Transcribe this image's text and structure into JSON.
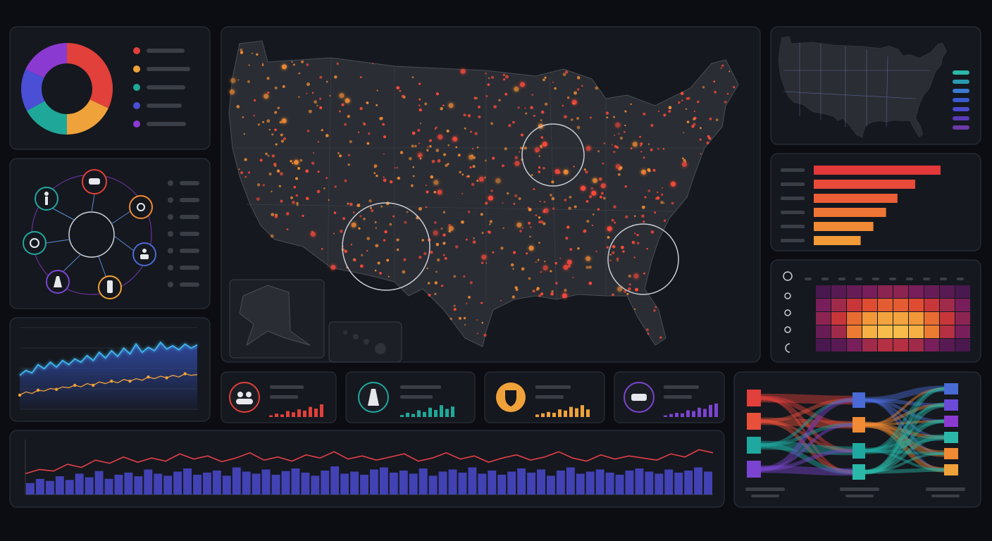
{
  "donut": {
    "values": [
      32,
      18,
      17,
      15,
      18
    ],
    "colors": [
      "#e2403a",
      "#f0a23a",
      "#1fa89a",
      "#4a4fd6",
      "#8a3ad0"
    ]
  },
  "ranking": {
    "values": [
      100,
      80,
      66,
      57,
      47,
      37
    ],
    "colors": [
      "#e2383a",
      "#e84a3a",
      "#ec5f36",
      "#ef7534",
      "#f08a34",
      "#f09a38"
    ]
  },
  "heatmap": {
    "values": [
      [
        10,
        15,
        20,
        25,
        30,
        30,
        25,
        20,
        15,
        10
      ],
      [
        25,
        35,
        45,
        55,
        60,
        60,
        55,
        45,
        35,
        25
      ],
      [
        30,
        45,
        65,
        80,
        85,
        85,
        80,
        65,
        45,
        30
      ],
      [
        20,
        35,
        70,
        90,
        95,
        95,
        90,
        70,
        40,
        25
      ],
      [
        10,
        15,
        25,
        35,
        40,
        40,
        35,
        25,
        15,
        10
      ]
    ]
  },
  "trend": {
    "ylim": [
      0,
      100
    ],
    "series": [
      {
        "color": "#3fb6f0",
        "values": [
          42,
          48,
          45,
          55,
          50,
          58,
          52,
          60,
          55,
          62,
          58,
          66,
          60,
          70,
          63,
          72,
          65,
          75,
          68,
          80,
          70,
          76,
          72,
          82,
          74,
          78,
          73,
          80,
          75,
          79
        ]
      },
      {
        "color": "#f0a23a",
        "values": [
          18,
          22,
          20,
          24,
          23,
          26,
          25,
          28,
          27,
          30,
          28,
          32,
          30,
          34,
          32,
          35,
          33,
          37,
          35,
          38,
          36,
          40,
          38,
          41,
          39,
          42,
          40,
          44,
          42,
          43
        ]
      }
    ]
  },
  "kpis": [
    {
      "color": "#e2403a",
      "values": [
        10,
        20,
        15,
        35,
        28,
        45,
        38,
        60,
        50,
        75
      ]
    },
    {
      "color": "#1fa89a",
      "values": [
        12,
        25,
        18,
        40,
        30,
        55,
        42,
        70,
        48,
        62
      ]
    },
    {
      "color": "#f0a23a",
      "values": [
        15,
        22,
        30,
        25,
        45,
        38,
        60,
        52,
        70,
        45
      ]
    },
    {
      "color": "#7a44d0",
      "values": [
        10,
        18,
        25,
        22,
        40,
        35,
        55,
        48,
        72,
        80
      ]
    }
  ],
  "timeline": {
    "ylim": [
      0,
      100
    ],
    "line": {
      "color": "#e2404a",
      "values": [
        40,
        48,
        45,
        58,
        52,
        66,
        60,
        72,
        62,
        70,
        64,
        78,
        68,
        74,
        63,
        70,
        80,
        66,
        72,
        64,
        76,
        70,
        82,
        68,
        74,
        66,
        72,
        78,
        64,
        70,
        80,
        68,
        74,
        62,
        70,
        76,
        66,
        72,
        82,
        70,
        64,
        76,
        68,
        74,
        70,
        66,
        78,
        72,
        86,
        80
      ]
    },
    "bars": {
      "color": "#4a4ad0",
      "values": [
        22,
        30,
        26,
        35,
        28,
        40,
        33,
        45,
        30,
        38,
        42,
        35,
        48,
        40,
        36,
        44,
        50,
        38,
        42,
        46,
        36,
        52,
        44,
        40,
        48,
        38,
        45,
        50,
        42,
        36,
        46,
        54,
        40,
        44,
        38,
        48,
        52,
        42,
        46,
        40,
        50,
        36,
        44,
        48,
        42,
        52,
        40,
        46,
        38,
        44,
        50,
        42,
        48,
        36,
        46,
        52,
        40,
        44,
        48,
        42,
        38,
        46,
        50,
        44,
        40,
        48,
        42,
        46,
        52,
        44
      ]
    }
  },
  "flows": {
    "left_colors": [
      "#e2403a",
      "#e8503a",
      "#1fa8a0",
      "#7a44d0"
    ],
    "mid_colors": [
      "#4a6ad6",
      "#f08a34",
      "#1fa8a0",
      "#2bb8a8"
    ],
    "right_colors": [
      "#4a6ad6",
      "#6a4ad6",
      "#8a3ad0",
      "#2bb8a8",
      "#f08a34",
      "#f0a23a"
    ],
    "left_to_mid": [
      [
        14,
        8,
        6,
        4
      ],
      [
        6,
        12,
        5,
        6
      ],
      [
        5,
        6,
        14,
        8
      ],
      [
        8,
        5,
        6,
        12
      ]
    ],
    "mid_to_right": [
      [
        10,
        6,
        5,
        4,
        4,
        4
      ],
      [
        4,
        5,
        4,
        6,
        10,
        8
      ],
      [
        5,
        4,
        6,
        10,
        5,
        4
      ],
      [
        6,
        8,
        6,
        6,
        4,
        6
      ]
    ]
  }
}
